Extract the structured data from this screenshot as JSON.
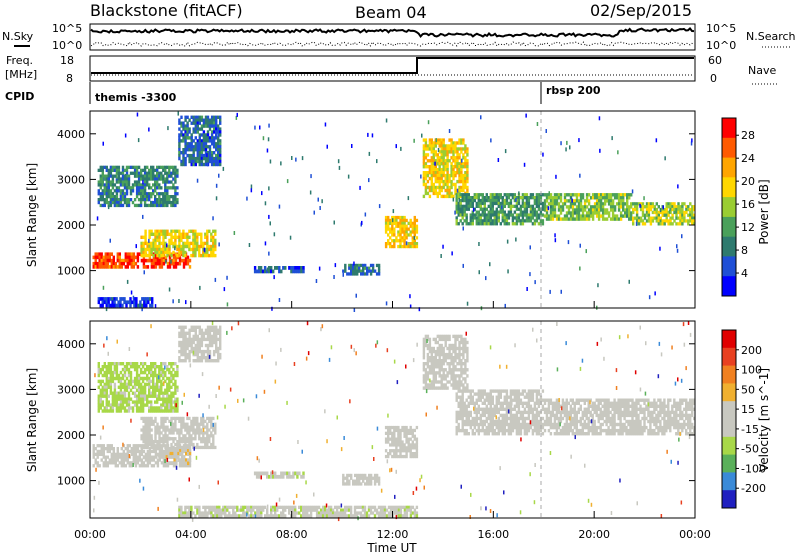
{
  "header": {
    "station": "Blackstone (fitACF)",
    "beam": "Beam 04",
    "date": "02/Sep/2015"
  },
  "strip_labels": {
    "nsky": "N.Sky",
    "nsearch": "N.Search",
    "freq": "Freq.",
    "freq_unit": "[MHz]",
    "nave": "Nave",
    "cpid": "CPID"
  },
  "strip_ticks": {
    "noise_top": "10^5",
    "noise_bottom": "10^0",
    "freq_left_top": "18",
    "freq_left_bottom": "8",
    "nave_right_top": "60",
    "nave_right_bottom": "0"
  },
  "cpid_segments": [
    {
      "label": "themis -3300",
      "start_hour": 0
    },
    {
      "label": "rbsp 200",
      "start_hour": 18.1
    }
  ],
  "colors": {
    "power_scale": [
      "#0000ff",
      "#1f4fd6",
      "#2e7a6e",
      "#4aa05a",
      "#9acd32",
      "#ffd700",
      "#ffa500",
      "#ff5a00",
      "#ff0000"
    ],
    "velocity_scale": [
      "#2020c0",
      "#3a8ad8",
      "#5ab05a",
      "#a8d848",
      "#c8c8c0",
      "#c8c8c0",
      "#f0b030",
      "#f08020",
      "#e84020",
      "#e00000"
    ]
  },
  "chart_data": [
    {
      "type": "heatmap",
      "title": "",
      "xlabel": "Time UT",
      "ylabel": "Slant Range [km]",
      "x_ticks": [
        "00:00",
        "04:00",
        "08:00",
        "12:00",
        "16:00",
        "20:00",
        "00:00"
      ],
      "xlim_hours": [
        0,
        24
      ],
      "y_ticks": [
        1000,
        2000,
        3000,
        4000
      ],
      "ylim": [
        180,
        4500
      ],
      "colorbar": {
        "label": "Power [dB]",
        "ticks": [
          4,
          8,
          12,
          16,
          20,
          24,
          28
        ],
        "range": [
          0,
          31
        ]
      },
      "regions": [
        {
          "t0": 0.1,
          "t1": 4.0,
          "r0": 1050,
          "r1": 1400,
          "value": 27
        },
        {
          "t0": 2.0,
          "t1": 5.0,
          "r0": 1300,
          "r1": 1900,
          "value": 18
        },
        {
          "t0": 0.3,
          "t1": 3.5,
          "r0": 2400,
          "r1": 3300,
          "value": 9
        },
        {
          "t0": 3.5,
          "t1": 5.2,
          "r0": 3300,
          "r1": 4400,
          "value": 7
        },
        {
          "t0": 6.5,
          "t1": 8.5,
          "r0": 950,
          "r1": 1100,
          "value": 6
        },
        {
          "t0": 10.0,
          "t1": 11.5,
          "r0": 900,
          "r1": 1150,
          "value": 8
        },
        {
          "t0": 11.7,
          "t1": 13.0,
          "r0": 1500,
          "r1": 2200,
          "value": 20
        },
        {
          "t0": 13.2,
          "t1": 15.0,
          "r0": 2600,
          "r1": 3900,
          "value": 19
        },
        {
          "t0": 14.5,
          "t1": 18.0,
          "r0": 2000,
          "r1": 2700,
          "value": 11
        },
        {
          "t0": 18.0,
          "t1": 21.5,
          "r0": 2100,
          "r1": 2700,
          "value": 14
        },
        {
          "t0": 21.5,
          "t1": 24.0,
          "r0": 2000,
          "r1": 2500,
          "value": 16
        },
        {
          "t0": 0.3,
          "t1": 2.5,
          "r0": 200,
          "r1": 420,
          "value": 4
        }
      ]
    },
    {
      "type": "heatmap",
      "title": "",
      "xlabel": "Time UT",
      "ylabel": "Slant Range [km]",
      "x_ticks": [
        "00:00",
        "04:00",
        "08:00",
        "12:00",
        "16:00",
        "20:00",
        "00:00"
      ],
      "xlim_hours": [
        0,
        24
      ],
      "y_ticks": [
        1000,
        2000,
        3000,
        4000
      ],
      "ylim": [
        180,
        4500
      ],
      "colorbar": {
        "label": "Velocity [m s^-1]",
        "ticks": [
          200,
          100,
          50,
          15,
          -15,
          -50,
          -100,
          -200
        ],
        "range": [
          -250,
          250
        ]
      },
      "regions": [
        {
          "t0": 0.1,
          "t1": 4.0,
          "r0": 1300,
          "r1": 1800,
          "value": 0
        },
        {
          "t0": 3.0,
          "t1": 4.0,
          "r0": 1350,
          "r1": 1700,
          "value": 40
        },
        {
          "t0": 2.0,
          "t1": 5.0,
          "r0": 1700,
          "r1": 2400,
          "value": 0
        },
        {
          "t0": 0.3,
          "t1": 3.5,
          "r0": 2500,
          "r1": 3600,
          "value": -60
        },
        {
          "t0": 3.5,
          "t1": 5.2,
          "r0": 3600,
          "r1": 4400,
          "value": 0
        },
        {
          "t0": 6.5,
          "t1": 8.5,
          "r0": 1050,
          "r1": 1200,
          "value": -40
        },
        {
          "t0": 10.0,
          "t1": 11.5,
          "r0": 900,
          "r1": 1150,
          "value": 0
        },
        {
          "t0": 11.7,
          "t1": 13.0,
          "r0": 1500,
          "r1": 2200,
          "value": 0
        },
        {
          "t0": 13.2,
          "t1": 15.0,
          "r0": 3000,
          "r1": 4200,
          "value": 0
        },
        {
          "t0": 14.5,
          "t1": 18.0,
          "r0": 2000,
          "r1": 3000,
          "value": 0
        },
        {
          "t0": 18.0,
          "t1": 24.0,
          "r0": 2000,
          "r1": 2800,
          "value": 0
        },
        {
          "t0": 3.5,
          "t1": 13.0,
          "r0": 200,
          "r1": 450,
          "value": -40
        }
      ]
    }
  ]
}
